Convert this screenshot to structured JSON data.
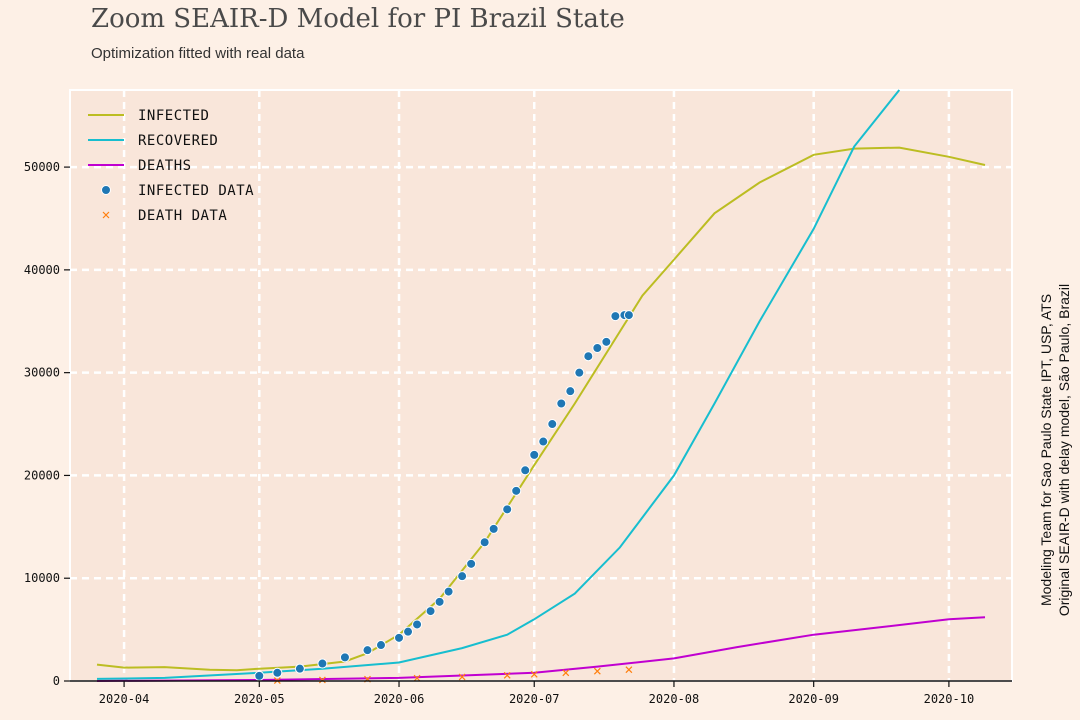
{
  "title": "Zoom SEAIR-D Model for PI Brazil State",
  "subtitle": "Optimization fitted with real data",
  "credit": {
    "line1": "Modeling Team for Sao Paulo State IPT, USP, ATS",
    "line2": "Original SEAIR-D with delay model, São Paulo, Brazil"
  },
  "colors": {
    "background": "#fdf0e6",
    "plot_background": "#f9e6da",
    "infected": "#bcbd22",
    "recovered": "#17becf",
    "deaths": "#c000d0",
    "infected_data": "#1f77b4",
    "death_data": "#ff7f0e"
  },
  "chart_data": {
    "type": "line",
    "x_unit": "date",
    "xlim": [
      "2020-03-20",
      "2020-10-15"
    ],
    "ylim": [
      0,
      57500
    ],
    "grid": true,
    "legend_placement": "top-left",
    "x_ticks": [
      {
        "date": "2020-04-01",
        "label": "2020-04"
      },
      {
        "date": "2020-05-01",
        "label": "2020-05"
      },
      {
        "date": "2020-06-01",
        "label": "2020-06"
      },
      {
        "date": "2020-07-01",
        "label": "2020-07"
      },
      {
        "date": "2020-08-01",
        "label": "2020-08"
      },
      {
        "date": "2020-09-01",
        "label": "2020-09"
      },
      {
        "date": "2020-10-01",
        "label": "2020-10"
      }
    ],
    "y_ticks": [
      0,
      10000,
      20000,
      30000,
      40000,
      50000
    ],
    "series": [
      {
        "name": "Infected",
        "kind": "line",
        "color": "#bcbd22",
        "x": [
          "2020-03-26",
          "2020-04-01",
          "2020-04-10",
          "2020-04-20",
          "2020-04-26",
          "2020-05-01",
          "2020-05-10",
          "2020-05-20",
          "2020-05-25",
          "2020-06-01",
          "2020-06-10",
          "2020-06-20",
          "2020-07-01",
          "2020-07-10",
          "2020-07-20",
          "2020-07-25",
          "2020-08-01",
          "2020-08-10",
          "2020-08-20",
          "2020-09-01",
          "2020-09-10",
          "2020-09-20",
          "2020-10-01",
          "2020-10-09"
        ],
        "values": [
          1600,
          1300,
          1350,
          1100,
          1050,
          1200,
          1400,
          1900,
          2700,
          4500,
          8000,
          13500,
          21000,
          27000,
          34000,
          37500,
          41000,
          45500,
          48500,
          51200,
          51800,
          51900,
          51000,
          50200
        ]
      },
      {
        "name": "Recovered",
        "kind": "line",
        "color": "#17becf",
        "x": [
          "2020-03-26",
          "2020-04-10",
          "2020-05-01",
          "2020-05-15",
          "2020-06-01",
          "2020-06-15",
          "2020-06-25",
          "2020-07-01",
          "2020-07-10",
          "2020-07-20",
          "2020-08-01",
          "2020-08-10",
          "2020-08-20",
          "2020-09-01",
          "2020-09-10",
          "2020-09-20"
        ],
        "values": [
          200,
          300,
          800,
          1200,
          1800,
          3200,
          4500,
          6000,
          8500,
          13000,
          20000,
          27000,
          35000,
          44000,
          52000,
          57500
        ]
      },
      {
        "name": "Deaths",
        "kind": "line",
        "color": "#c000d0",
        "x": [
          "2020-03-26",
          "2020-05-01",
          "2020-06-01",
          "2020-07-01",
          "2020-07-15",
          "2020-08-01",
          "2020-08-15",
          "2020-09-01",
          "2020-09-15",
          "2020-10-01",
          "2020-10-09"
        ],
        "values": [
          0,
          100,
          300,
          800,
          1400,
          2200,
          3300,
          4500,
          5200,
          6000,
          6200
        ]
      },
      {
        "name": "Infected data",
        "kind": "scatter",
        "color": "#1f77b4",
        "x": [
          "2020-05-01",
          "2020-05-05",
          "2020-05-10",
          "2020-05-15",
          "2020-05-20",
          "2020-05-25",
          "2020-05-28",
          "2020-06-01",
          "2020-06-03",
          "2020-06-05",
          "2020-06-08",
          "2020-06-10",
          "2020-06-12",
          "2020-06-15",
          "2020-06-17",
          "2020-06-20",
          "2020-06-22",
          "2020-06-25",
          "2020-06-27",
          "2020-06-29",
          "2020-07-01",
          "2020-07-03",
          "2020-07-05",
          "2020-07-07",
          "2020-07-09",
          "2020-07-11",
          "2020-07-13",
          "2020-07-15",
          "2020-07-17",
          "2020-07-19",
          "2020-07-21",
          "2020-07-22"
        ],
        "values": [
          500,
          800,
          1200,
          1700,
          2300,
          3000,
          3500,
          4200,
          4800,
          5500,
          6800,
          7700,
          8700,
          10200,
          11400,
          13500,
          14800,
          16700,
          18500,
          20500,
          22000,
          23300,
          25000,
          27000,
          28200,
          30000,
          31600,
          32400,
          33000,
          35500,
          35600,
          35600
        ]
      },
      {
        "name": "Death data",
        "kind": "scatter-x",
        "color": "#ff7f0e",
        "x": [
          "2020-05-05",
          "2020-05-15",
          "2020-05-25",
          "2020-06-05",
          "2020-06-15",
          "2020-06-25",
          "2020-07-01",
          "2020-07-08",
          "2020-07-15",
          "2020-07-22"
        ],
        "values": [
          40,
          100,
          180,
          280,
          400,
          550,
          650,
          800,
          950,
          1100
        ]
      }
    ]
  }
}
